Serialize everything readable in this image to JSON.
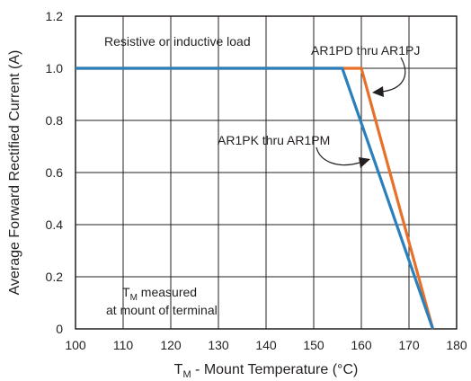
{
  "chart_data": {
    "type": "line",
    "xlabel_main": "T",
    "xlabel_sub": "M",
    "xlabel_rest": " - Mount Temperature (°C)",
    "ylabel": "Average Forward Rectified Current (A)",
    "xlim": [
      100,
      180
    ],
    "ylim": [
      0,
      1.2
    ],
    "x_ticks": [
      "100",
      "110",
      "120",
      "130",
      "140",
      "150",
      "160",
      "170",
      "180"
    ],
    "y_ticks": [
      "0",
      "0.2",
      "0.4",
      "0.6",
      "0.8",
      "1.0",
      "1.2"
    ],
    "x_tick_values": [
      100,
      110,
      120,
      130,
      140,
      150,
      160,
      170,
      180
    ],
    "y_tick_values": [
      0,
      0.2,
      0.4,
      0.6,
      0.8,
      1.0,
      1.2
    ],
    "grid": true,
    "series": [
      {
        "name": "AR1PD thru AR1PJ",
        "color": "#e8712a",
        "x": [
          100,
          160,
          175
        ],
        "y": [
          1.0,
          1.0,
          0
        ]
      },
      {
        "name": "AR1PK thru AR1PM",
        "color": "#2a7fbd",
        "x": [
          100,
          156,
          175
        ],
        "y": [
          1.0,
          1.0,
          0
        ]
      }
    ],
    "annotations": {
      "load": "Resistive or inductive load",
      "orange_label": "AR1PD thru AR1PJ",
      "blue_label": "AR1PK thru AR1PM",
      "note_main": "T",
      "note_sub": "M",
      "note_rest": " measured",
      "note_line2": "at mount of terminal"
    }
  }
}
